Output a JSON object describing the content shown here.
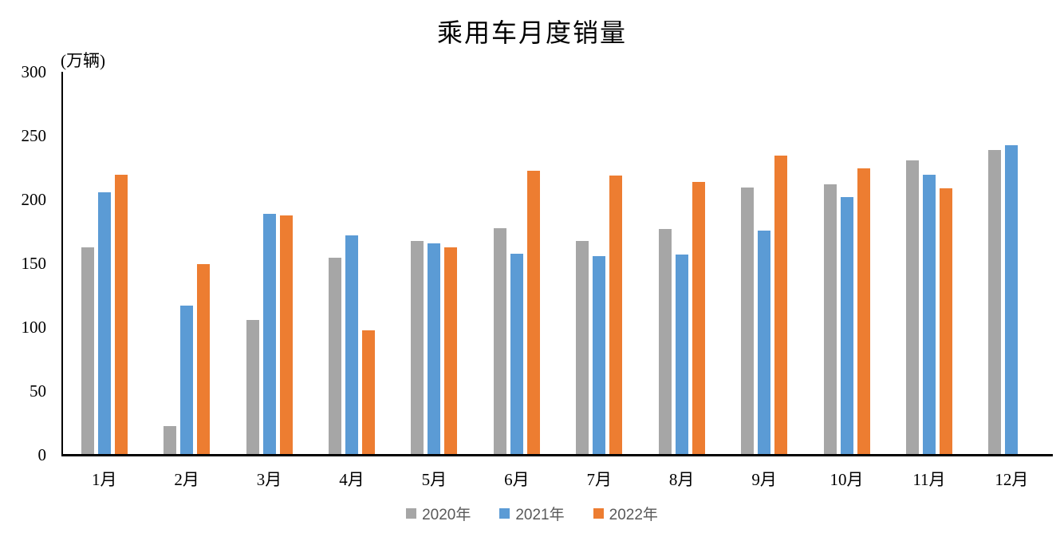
{
  "chart_data": {
    "type": "bar",
    "title": "乘用车月度销量",
    "unit_label": "(万辆)",
    "categories": [
      "1月",
      "2月",
      "3月",
      "4月",
      "5月",
      "6月",
      "7月",
      "8月",
      "9月",
      "10月",
      "11月",
      "12月"
    ],
    "series": [
      {
        "name": "2020年",
        "color": "#A6A6A6",
        "values": [
          162,
          22,
          105,
          154,
          167,
          177,
          167,
          176,
          209,
          211,
          230,
          238
        ]
      },
      {
        "name": "2021年",
        "color": "#5B9BD5",
        "values": [
          205,
          116,
          188,
          171,
          165,
          157,
          155,
          156,
          175,
          201,
          219,
          242
        ]
      },
      {
        "name": "2022年",
        "color": "#ED7D31",
        "values": [
          219,
          149,
          187,
          97,
          162,
          222,
          218,
          213,
          234,
          224,
          208,
          null
        ]
      }
    ],
    "xlabel": "",
    "ylabel": "(万辆)",
    "ylim": [
      0,
      300
    ],
    "yticks": [
      0,
      50,
      100,
      150,
      200,
      250,
      300
    ],
    "grid": false,
    "legend_position": "bottom",
    "axis_color": "#000000",
    "legend_text_color": "#595959",
    "background_color": "#FFFFFF"
  }
}
